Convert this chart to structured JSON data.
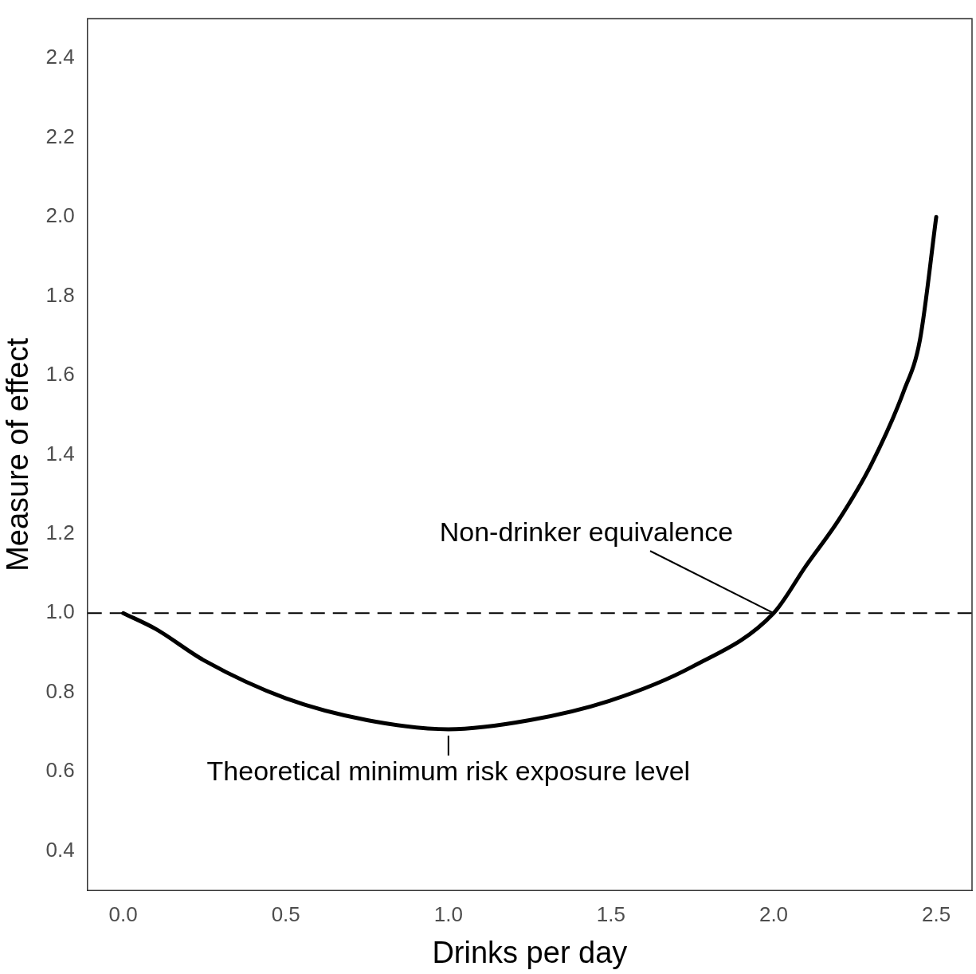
{
  "chart_data": {
    "type": "line",
    "xlabel": "Drinks per day",
    "ylabel": "Measure of effect",
    "x": [
      0,
      0.1,
      0.25,
      0.5,
      0.75,
      1.0,
      1.25,
      1.5,
      1.75,
      2.0,
      2.1,
      2.2,
      2.3,
      2.4,
      2.45,
      2.5
    ],
    "series": [
      {
        "color": "#000000",
        "values": [
          1.0,
          0.96,
          0.88,
          0.785,
          0.73,
          0.707,
          0.73,
          0.78,
          0.865,
          1.0,
          1.12,
          1.235,
          1.375,
          1.56,
          1.69,
          2.0
        ]
      }
    ],
    "xlim": [
      -0.11,
      2.61
    ],
    "xticks": [
      {
        "value": 0,
        "label": "0.0"
      },
      0.5,
      {
        "value": 1,
        "label": "1.0"
      },
      1.5,
      {
        "value": 2,
        "label": "2.0"
      },
      2.5
    ],
    "ylim": [
      0.3,
      2.5
    ],
    "yticks": [
      0.4,
      0.6,
      0.8,
      {
        "value": 1,
        "label": "1.0"
      },
      1.2,
      1.4,
      1.6,
      1.8,
      {
        "value": 2,
        "label": "2.0"
      },
      2.2,
      2.4
    ],
    "ref_lines": [
      {
        "axis": "y",
        "value": 1,
        "line_style": "dashed",
        "color": "#000000"
      }
    ],
    "annotations": [
      {
        "text": "Non-drinker equivalence",
        "x": 2.0,
        "y": 1.0
      },
      {
        "text": "Theoretical minimum risk exposure level",
        "x": 1.0,
        "y": 0.707
      }
    ],
    "grid": false,
    "legend": false,
    "marker": "none",
    "line_style": "solid"
  }
}
